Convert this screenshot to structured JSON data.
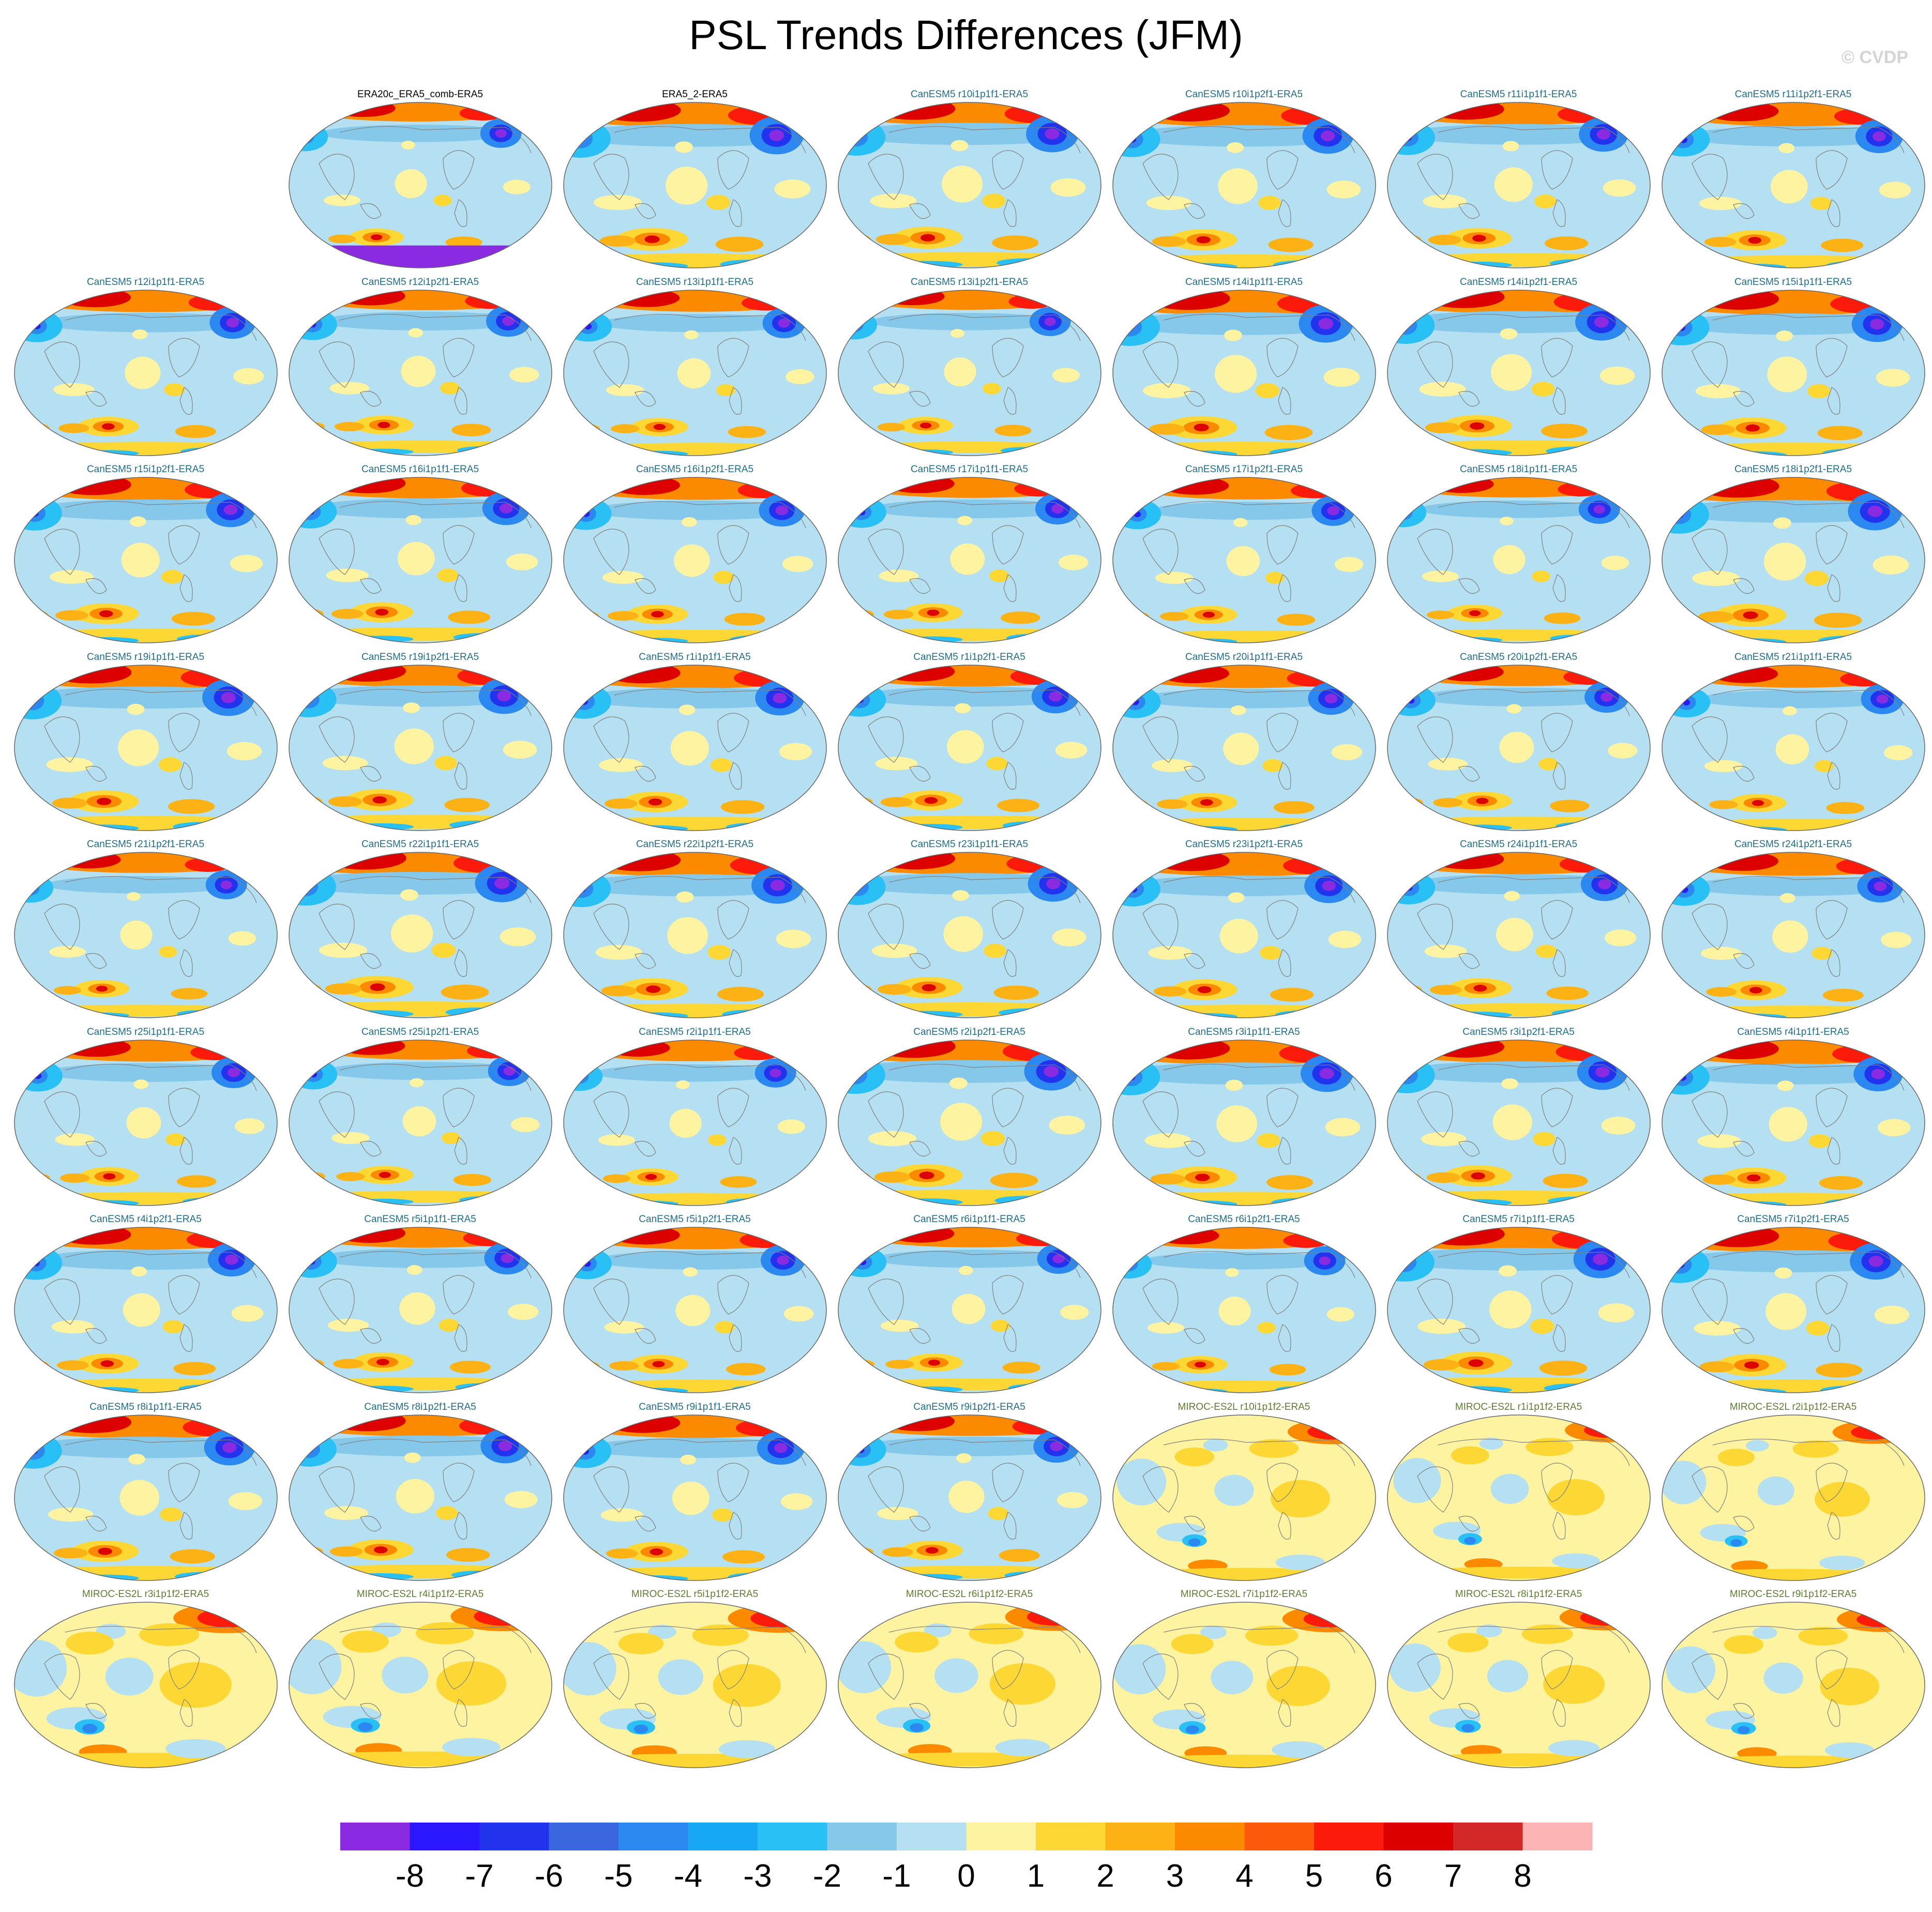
{
  "title": "PSL Trends Differences (JFM)",
  "watermark": "© CVDP",
  "panels": [
    "ERA20c_ERA5_comb-ERA5",
    "ERA5_2-ERA5",
    "CanESM5 r10i1p1f1-ERA5",
    "CanESM5 r10i1p2f1-ERA5",
    "CanESM5 r11i1p1f1-ERA5",
    "CanESM5 r11i1p2f1-ERA5",
    "CanESM5 r12i1p1f1-ERA5",
    "CanESM5 r12i1p2f1-ERA5",
    "CanESM5 r13i1p1f1-ERA5",
    "CanESM5 r13i1p2f1-ERA5",
    "CanESM5 r14i1p1f1-ERA5",
    "CanESM5 r14i1p2f1-ERA5",
    "CanESM5 r15i1p1f1-ERA5",
    "CanESM5 r15i1p2f1-ERA5",
    "CanESM5 r16i1p1f1-ERA5",
    "CanESM5 r16i1p2f1-ERA5",
    "CanESM5 r17i1p1f1-ERA5",
    "CanESM5 r17i1p2f1-ERA5",
    "CanESM5 r18i1p1f1-ERA5",
    "CanESM5 r18i1p2f1-ERA5",
    "CanESM5 r19i1p1f1-ERA5",
    "CanESM5 r19i1p2f1-ERA5",
    "CanESM5 r1i1p1f1-ERA5",
    "CanESM5 r1i1p2f1-ERA5",
    "CanESM5 r20i1p1f1-ERA5",
    "CanESM5 r20i1p2f1-ERA5",
    "CanESM5 r21i1p1f1-ERA5",
    "CanESM5 r21i1p2f1-ERA5",
    "CanESM5 r22i1p1f1-ERA5",
    "CanESM5 r22i1p2f1-ERA5",
    "CanESM5 r23i1p1f1-ERA5",
    "CanESM5 r23i1p2f1-ERA5",
    "CanESM5 r24i1p1f1-ERA5",
    "CanESM5 r24i1p2f1-ERA5",
    "CanESM5 r25i1p1f1-ERA5",
    "CanESM5 r25i1p2f1-ERA5",
    "CanESM5 r2i1p1f1-ERA5",
    "CanESM5 r2i1p2f1-ERA5",
    "CanESM5 r3i1p1f1-ERA5",
    "CanESM5 r3i1p2f1-ERA5",
    "CanESM5 r4i1p1f1-ERA5",
    "CanESM5 r4i1p2f1-ERA5",
    "CanESM5 r5i1p1f1-ERA5",
    "CanESM5 r5i1p2f1-ERA5",
    "CanESM5 r6i1p1f1-ERA5",
    "CanESM5 r6i1p2f1-ERA5",
    "CanESM5 r7i1p1f1-ERA5",
    "CanESM5 r7i1p2f1-ERA5",
    "CanESM5 r8i1p1f1-ERA5",
    "CanESM5 r8i1p2f1-ERA5",
    "CanESM5 r9i1p1f1-ERA5",
    "CanESM5 r9i1p2f1-ERA5",
    "MIROC-ES2L r10i1p1f2-ERA5",
    "MIROC-ES2L r1i1p1f2-ERA5",
    "MIROC-ES2L r2i1p1f2-ERA5",
    "MIROC-ES2L r3i1p1f2-ERA5",
    "MIROC-ES2L r4i1p1f2-ERA5",
    "MIROC-ES2L r5i1p1f2-ERA5",
    "MIROC-ES2L r6i1p1f2-ERA5",
    "MIROC-ES2L r7i1p1f2-ERA5",
    "MIROC-ES2L r8i1p1f2-ERA5",
    "MIROC-ES2L r9i1p1f2-ERA5"
  ],
  "colorbar": {
    "labels": [
      "-8",
      "-7",
      "-6",
      "-5",
      "-4",
      "-3",
      "-2",
      "-1",
      "0",
      "1",
      "2",
      "3",
      "4",
      "5",
      "6",
      "7",
      "8"
    ],
    "colors": [
      "#8a2be2",
      "#2a17ff",
      "#2233ee",
      "#3a66e0",
      "#2b88f0",
      "#16a8f5",
      "#28c0f5",
      "#86c8ea",
      "#b4e0f2",
      "#fdf3a0",
      "#fdd835",
      "#fcb214",
      "#fc8a00",
      "#fc5a0a",
      "#fc1a0a",
      "#dd0000",
      "#d42828",
      "#fcb4b4"
    ]
  },
  "patterns": {
    "canesm": {
      "base": "#b4e0f2",
      "blobs": [
        [
          50,
          6,
          48,
          8,
          "#fc8a00"
        ],
        [
          30,
          5,
          14,
          6,
          "#dd0000"
        ],
        [
          75,
          8,
          10,
          5,
          "#fc1a0a"
        ],
        [
          50,
          20,
          42,
          6,
          "#86c8ea"
        ],
        [
          47,
          27,
          3,
          3,
          "#fdf3a0"
        ],
        [
          8,
          22,
          10,
          10,
          "#28c0f5"
        ],
        [
          8,
          22,
          4,
          5,
          "#2b88f0"
        ],
        [
          8,
          22,
          1.5,
          2,
          "#2a17ff"
        ],
        [
          82,
          20,
          9,
          10,
          "#2b88f0"
        ],
        [
          82,
          20,
          5,
          6,
          "#2233ee"
        ],
        [
          82,
          20,
          2.5,
          3,
          "#8a2be2"
        ],
        [
          22,
          60,
          8,
          4,
          "#fdf3a0"
        ],
        [
          48,
          50,
          7,
          10,
          "#fdf3a0"
        ],
        [
          88,
          52,
          6,
          5,
          "#fdf3a0"
        ],
        [
          60,
          60,
          4,
          4,
          "#fdd835"
        ],
        [
          35,
          82,
          12,
          6,
          "#fdd835"
        ],
        [
          35,
          82,
          6,
          3.5,
          "#fc8a00"
        ],
        [
          35,
          82,
          2.5,
          2,
          "#dd0000"
        ],
        [
          22,
          83,
          6,
          3,
          "#fcb214"
        ],
        [
          8,
          83,
          5,
          3,
          "#fcb214"
        ],
        [
          68,
          85,
          8,
          4,
          "#fcb214"
        ],
        [
          50,
          95,
          50,
          4,
          "#fdd835"
        ],
        [
          35,
          98,
          12,
          2,
          "#28c0f5"
        ],
        [
          72,
          97,
          10,
          2.5,
          "#28c0f5"
        ]
      ]
    },
    "miroc": {
      "base": "#fdf3a0",
      "blobs": [
        [
          82,
          10,
          18,
          8,
          "#fc8a00"
        ],
        [
          82,
          10,
          10,
          5,
          "#fc1a0a"
        ],
        [
          86,
          9,
          4,
          3,
          "#dd0000"
        ],
        [
          60,
          20,
          10,
          6,
          "#fdd835"
        ],
        [
          38,
          18,
          5,
          4,
          "#b4e0f2"
        ],
        [
          10,
          40,
          10,
          15,
          "#b4e0f2"
        ],
        [
          30,
          25,
          8,
          6,
          "#fdd835"
        ],
        [
          70,
          50,
          12,
          12,
          "#fdd835"
        ],
        [
          45,
          45,
          8,
          10,
          "#b4e0f2"
        ],
        [
          25,
          70,
          10,
          6,
          "#b4e0f2"
        ],
        [
          30,
          75,
          5,
          4,
          "#28c0f5"
        ],
        [
          30,
          76,
          2.5,
          2.5,
          "#2b88f0"
        ],
        [
          35,
          90,
          8,
          4,
          "#fc8a00"
        ],
        [
          50,
          95,
          45,
          4,
          "#fdd835"
        ],
        [
          70,
          88,
          10,
          5,
          "#b4e0f2"
        ]
      ]
    }
  }
}
